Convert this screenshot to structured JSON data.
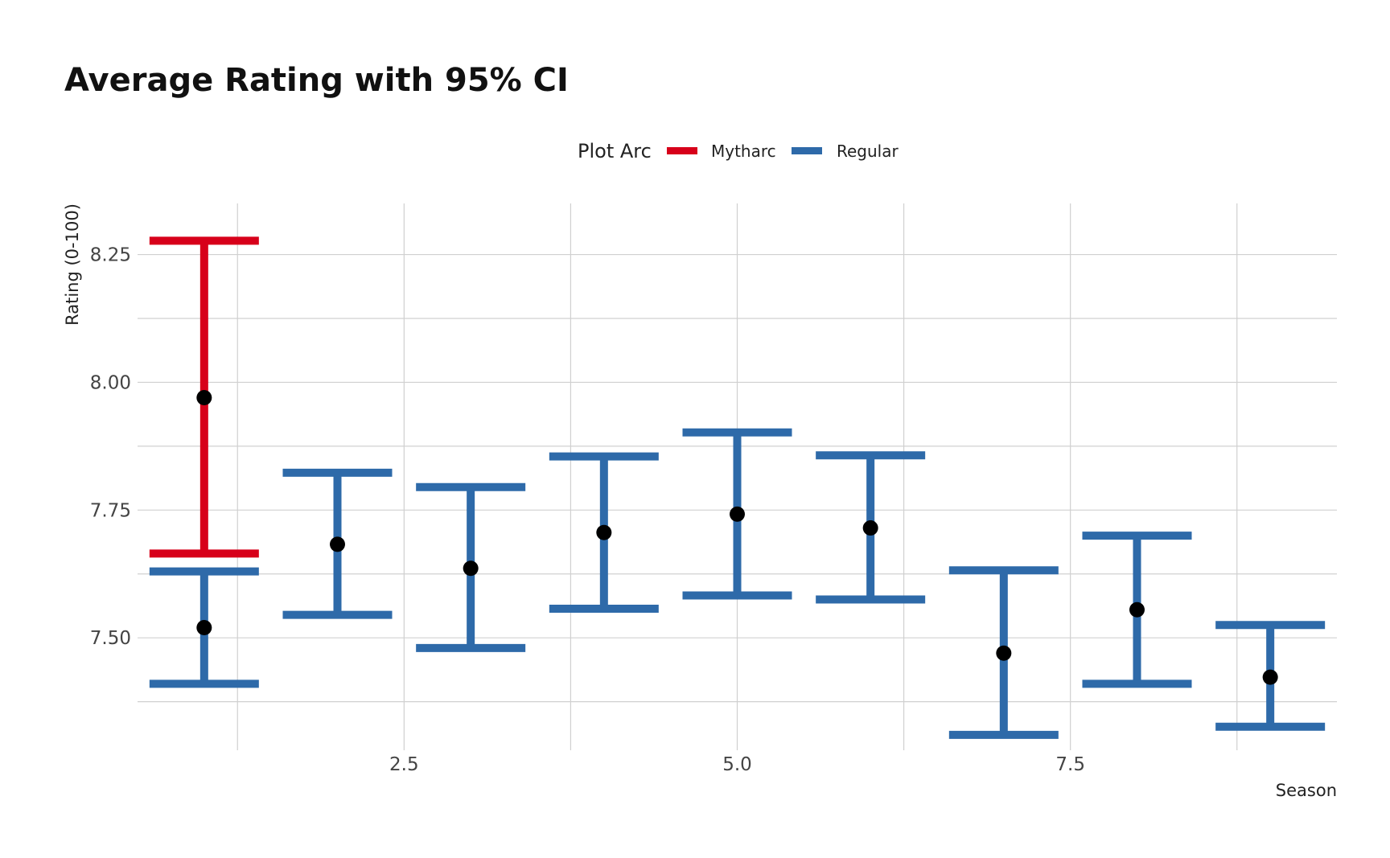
{
  "chart_data": {
    "type": "errorbar",
    "title": "Average Rating with 95% CI",
    "xlabel": "Season",
    "ylabel": "Rating (0-100)",
    "xlim": [
      0.5,
      9.5
    ],
    "ylim": [
      7.28,
      8.35
    ],
    "x_ticks": [
      {
        "value": 2.5,
        "label": "2.5"
      },
      {
        "value": 5.0,
        "label": "5.0"
      },
      {
        "value": 7.5,
        "label": "7.5"
      }
    ],
    "y_ticks": [
      {
        "value": 7.5,
        "label": "7.50"
      },
      {
        "value": 7.75,
        "label": "7.75"
      },
      {
        "value": 8.0,
        "label": "8.00"
      },
      {
        "value": 8.25,
        "label": "8.25"
      }
    ],
    "grid": true,
    "legend": {
      "title": "Plot Arc",
      "placement": "top",
      "entries": [
        {
          "label": "Mytharc",
          "color": "#d7001a"
        },
        {
          "label": "Regular",
          "color": "#2e6aa9"
        }
      ]
    },
    "series": [
      {
        "name": "Mytharc",
        "color": "#d7001a",
        "points": [
          {
            "x": 1,
            "y": 7.97,
            "lower": 7.665,
            "upper": 8.277
          }
        ]
      },
      {
        "name": "Regular",
        "color": "#2e6aa9",
        "points": [
          {
            "x": 1,
            "y": 7.52,
            "lower": 7.41,
            "upper": 7.63
          },
          {
            "x": 2,
            "y": 7.683,
            "lower": 7.545,
            "upper": 7.823
          },
          {
            "x": 3,
            "y": 7.636,
            "lower": 7.48,
            "upper": 7.795
          },
          {
            "x": 4,
            "y": 7.706,
            "lower": 7.557,
            "upper": 7.855
          },
          {
            "x": 5,
            "y": 7.742,
            "lower": 7.583,
            "upper": 7.902
          },
          {
            "x": 6,
            "y": 7.715,
            "lower": 7.575,
            "upper": 7.857
          },
          {
            "x": 7,
            "y": 7.47,
            "lower": 7.31,
            "upper": 7.632
          },
          {
            "x": 8,
            "y": 7.555,
            "lower": 7.41,
            "upper": 7.7
          },
          {
            "x": 9,
            "y": 7.423,
            "lower": 7.326,
            "upper": 7.525
          }
        ]
      }
    ],
    "point_color": "#000000",
    "grid_color": "#d0d0d0"
  }
}
